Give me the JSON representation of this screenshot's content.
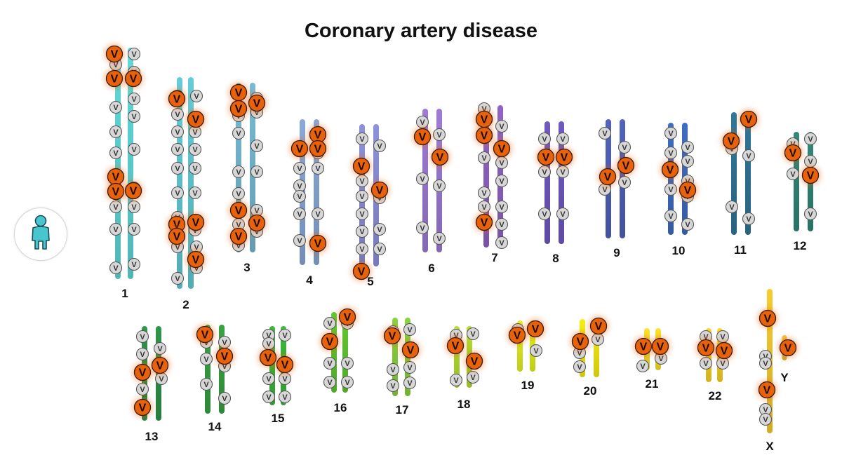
{
  "title": "Coronary artery disease",
  "avatar_icon": "person-icon",
  "avatar_color": "#47c6cf",
  "variant_letter": "V",
  "risk_variant_color": "#e8620e",
  "common_variant_color": "#d7d7d7",
  "chromosomes": [
    {
      "label": "1",
      "color": "#5fd6d6"
    },
    {
      "label": "2",
      "color": "#62c9d3"
    },
    {
      "label": "3",
      "color": "#76b8d0"
    },
    {
      "label": "4",
      "color": "#86a6d6"
    },
    {
      "label": "5",
      "color": "#8b8fd6"
    },
    {
      "label": "6",
      "color": "#9b7ad1"
    },
    {
      "label": "7",
      "color": "#8e62c4"
    },
    {
      "label": "8",
      "color": "#6e58bd"
    },
    {
      "label": "9",
      "color": "#4f61b9"
    },
    {
      "label": "10",
      "color": "#3d6cbd"
    },
    {
      "label": "11",
      "color": "#2f7595"
    },
    {
      "label": "12",
      "color": "#2f8677"
    },
    {
      "label": "13",
      "color": "#2f9249"
    },
    {
      "label": "14",
      "color": "#37a043"
    },
    {
      "label": "15",
      "color": "#3cb53b"
    },
    {
      "label": "16",
      "color": "#5ec72f"
    },
    {
      "label": "17",
      "color": "#86d13a"
    },
    {
      "label": "18",
      "color": "#b3dc2f"
    },
    {
      "label": "19",
      "color": "#e2f01b"
    },
    {
      "label": "20",
      "color": "#f2ea12"
    },
    {
      "label": "21",
      "color": "#f7e02a"
    },
    {
      "label": "22",
      "color": "#f6d325"
    },
    {
      "label": "X",
      "color": "#f3c92e"
    },
    {
      "label": "Y",
      "color": "#f0c238"
    }
  ]
}
